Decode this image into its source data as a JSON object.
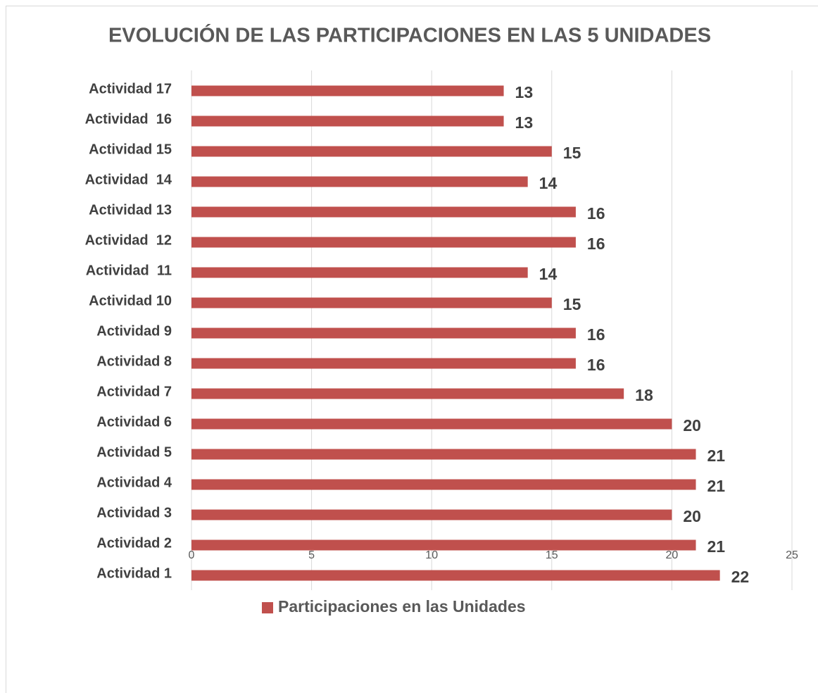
{
  "chart_data": {
    "type": "barh",
    "title": "EVOLUCIÓN DE LAS PARTICIPACIONES EN LAS 5 UNIDADES",
    "categories": [
      "Actividad 1",
      "Actividad 2",
      "Actividad 3",
      "Actividad 4",
      "Actividad 5",
      "Actividad 6",
      "Actividad 7",
      "Actividad 8",
      "Actividad 9",
      "Actividad 10",
      "Actividad  11",
      "Actividad  12",
      "Actividad 13",
      "Actividad  14",
      "Actividad 15",
      "Actividad  16",
      "Actividad 17"
    ],
    "series": [
      {
        "name": "Participaciones en las Unidades",
        "color": "#c0504d",
        "values": [
          22,
          21,
          20,
          21,
          21,
          20,
          18,
          16,
          16,
          15,
          14,
          16,
          16,
          14,
          15,
          13,
          13
        ]
      }
    ],
    "xlim": [
      0,
      25
    ],
    "xticks": [
      0,
      5,
      10,
      15,
      20,
      25
    ],
    "grid": true,
    "legend": "bottom",
    "data_labels": true
  }
}
